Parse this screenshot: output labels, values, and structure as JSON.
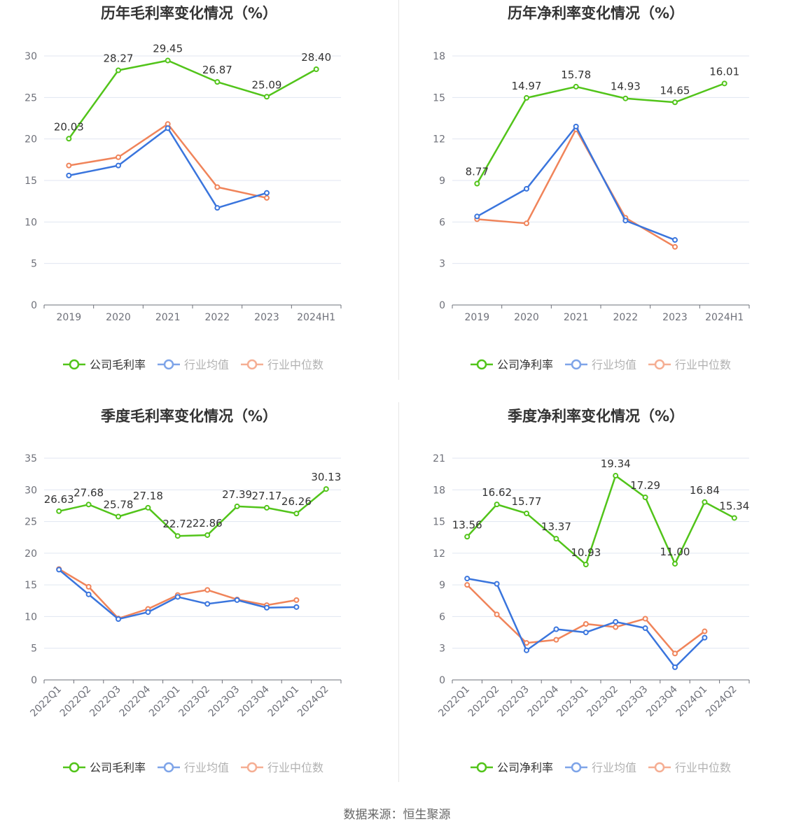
{
  "source": "数据来源：恒生聚源",
  "colors": {
    "company": "#52c41a",
    "avg": "#3a75dd",
    "median": "#f0845a"
  },
  "chart_data": [
    {
      "type": "line",
      "title": "历年毛利率变化情况（%）",
      "categories": [
        "2019",
        "2020",
        "2021",
        "2022",
        "2023",
        "2024H1"
      ],
      "ylim": [
        0,
        30
      ],
      "yticks": [
        0,
        5,
        10,
        15,
        20,
        25,
        30
      ],
      "legend": "bottom",
      "series": [
        {
          "name": "公司毛利率",
          "key": "company",
          "values": [
            20.03,
            28.27,
            29.45,
            26.87,
            25.09,
            28.4
          ],
          "labels": [
            "20.03",
            "28.27",
            "29.45",
            "26.87",
            "25.09",
            "28.40"
          ]
        },
        {
          "name": "行业均值",
          "key": "avg",
          "values": [
            15.6,
            16.8,
            21.3,
            11.7,
            13.5,
            null
          ]
        },
        {
          "name": "行业中位数",
          "key": "median",
          "values": [
            16.8,
            17.8,
            21.8,
            14.2,
            12.9,
            null
          ]
        }
      ]
    },
    {
      "type": "line",
      "title": "历年净利率变化情况（%）",
      "categories": [
        "2019",
        "2020",
        "2021",
        "2022",
        "2023",
        "2024H1"
      ],
      "ylim": [
        0,
        18
      ],
      "yticks": [
        0,
        3,
        6,
        9,
        12,
        15,
        18
      ],
      "legend": "bottom",
      "series": [
        {
          "name": "公司净利率",
          "key": "company",
          "values": [
            8.77,
            14.97,
            15.78,
            14.93,
            14.65,
            16.01
          ],
          "labels": [
            "8.77",
            "14.97",
            "15.78",
            "14.93",
            "14.65",
            "16.01"
          ]
        },
        {
          "name": "行业均值",
          "key": "avg",
          "values": [
            6.4,
            8.4,
            12.9,
            6.1,
            4.7,
            null
          ]
        },
        {
          "name": "行业中位数",
          "key": "median",
          "values": [
            6.2,
            5.9,
            12.7,
            6.3,
            4.2,
            null
          ]
        }
      ]
    },
    {
      "type": "line",
      "title": "季度毛利率变化情况（%）",
      "categories": [
        "2022Q1",
        "2022Q2",
        "2022Q3",
        "2022Q4",
        "2023Q1",
        "2023Q2",
        "2023Q3",
        "2023Q4",
        "2024Q1",
        "2024Q2"
      ],
      "ylim": [
        0,
        35
      ],
      "yticks": [
        0,
        5,
        10,
        15,
        20,
        25,
        30,
        35
      ],
      "legend": "bottom",
      "series": [
        {
          "name": "公司毛利率",
          "key": "company",
          "values": [
            26.63,
            27.68,
            25.78,
            27.18,
            22.72,
            22.86,
            27.39,
            27.17,
            26.26,
            30.13
          ],
          "labels": [
            "26.63",
            "27.68",
            "25.78",
            "27.18",
            "22.72",
            "22.86",
            "27.39",
            "27.17",
            "26.26",
            "30.13"
          ]
        },
        {
          "name": "行业均值",
          "key": "avg",
          "values": [
            17.4,
            13.5,
            9.6,
            10.7,
            13.1,
            12.0,
            12.6,
            11.4,
            11.5,
            null
          ]
        },
        {
          "name": "行业中位数",
          "key": "median",
          "values": [
            17.5,
            14.7,
            9.7,
            11.2,
            13.4,
            14.2,
            12.7,
            11.8,
            12.6,
            null
          ]
        }
      ]
    },
    {
      "type": "line",
      "title": "季度净利率变化情况（%）",
      "categories": [
        "2022Q1",
        "2022Q2",
        "2022Q3",
        "2022Q4",
        "2023Q1",
        "2023Q2",
        "2023Q3",
        "2023Q4",
        "2024Q1",
        "2024Q2"
      ],
      "ylim": [
        0,
        21
      ],
      "yticks": [
        0,
        3,
        6,
        9,
        12,
        15,
        18,
        21
      ],
      "legend": "bottom",
      "series": [
        {
          "name": "公司净利率",
          "key": "company",
          "values": [
            13.56,
            16.62,
            15.77,
            13.37,
            10.93,
            19.34,
            17.29,
            11.0,
            16.84,
            15.34
          ],
          "labels": [
            "13.56",
            "16.62",
            "15.77",
            "13.37",
            "10.93",
            "19.34",
            "17.29",
            "11.00",
            "16.84",
            "15.34"
          ]
        },
        {
          "name": "行业均值",
          "key": "avg",
          "values": [
            9.6,
            9.1,
            2.8,
            4.8,
            4.5,
            5.5,
            4.9,
            1.2,
            4.0,
            null
          ]
        },
        {
          "name": "行业中位数",
          "key": "median",
          "values": [
            9.0,
            6.2,
            3.5,
            3.8,
            5.3,
            5.0,
            5.8,
            2.5,
            4.6,
            null
          ]
        }
      ]
    }
  ]
}
